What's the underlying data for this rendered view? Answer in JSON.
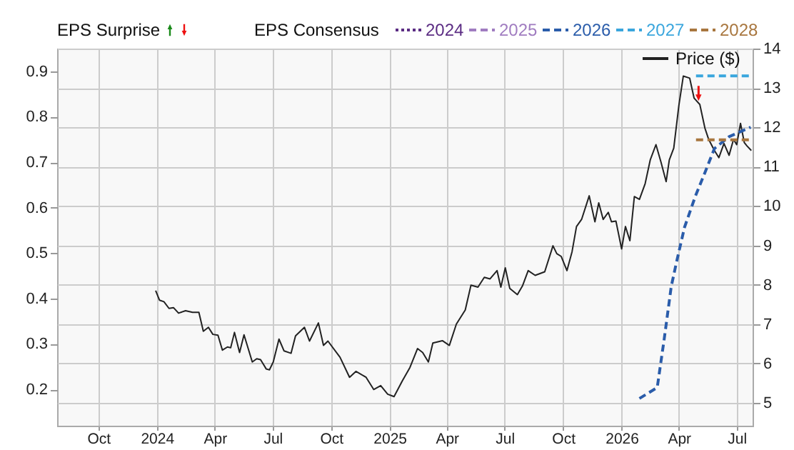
{
  "chart_data": {
    "type": "line",
    "legend_title": "EPS Consensus",
    "annotations": [
      "EPS Surprise"
    ],
    "xlim": [
      "2023-07-28",
      "2026-07-26"
    ],
    "xticks": [
      {
        "value": "2023-10-01",
        "label": "Oct"
      },
      {
        "value": "2024-01-01",
        "label": "2024"
      },
      {
        "value": "2024-04-01",
        "label": "Apr"
      },
      {
        "value": "2024-07-01",
        "label": "Jul"
      },
      {
        "value": "2024-10-01",
        "label": "Oct"
      },
      {
        "value": "2025-01-01",
        "label": "2025"
      },
      {
        "value": "2025-04-01",
        "label": "Apr"
      },
      {
        "value": "2025-07-01",
        "label": "Jul"
      },
      {
        "value": "2025-10-01",
        "label": "Oct"
      },
      {
        "value": "2026-01-01",
        "label": "2026"
      },
      {
        "value": "2026-04-01",
        "label": "Apr"
      },
      {
        "value": "2026-07-01",
        "label": "Jul"
      }
    ],
    "ylim": [
      0.12,
      0.95
    ],
    "yticks": [
      0.2,
      0.3,
      0.4,
      0.5,
      0.6,
      0.7,
      0.8,
      0.9
    ],
    "y2lim": [
      4.42,
      14.0
    ],
    "y2ticks": [
      5,
      6,
      7,
      8,
      9,
      10,
      11,
      12,
      13,
      14
    ],
    "grid": true,
    "legend": "top",
    "series": [
      {
        "name": "Price ($)",
        "axis": "y2",
        "color": "#222222",
        "x": [
          "2023-12-30",
          "2024-01-05",
          "2024-01-12",
          "2024-01-20",
          "2024-01-27",
          "2024-02-04",
          "2024-02-15",
          "2024-02-26",
          "2024-03-07",
          "2024-03-14",
          "2024-03-22",
          "2024-03-29",
          "2024-04-06",
          "2024-04-13",
          "2024-04-21",
          "2024-04-26",
          "2024-05-02",
          "2024-05-10",
          "2024-05-17",
          "2024-05-30",
          "2024-06-06",
          "2024-06-12",
          "2024-06-21",
          "2024-06-26",
          "2024-07-02",
          "2024-07-11",
          "2024-07-19",
          "2024-07-30",
          "2024-08-06",
          "2024-08-20",
          "2024-08-28",
          "2024-09-11",
          "2024-09-19",
          "2024-09-26",
          "2024-10-15",
          "2024-10-30",
          "2024-11-09",
          "2024-11-25",
          "2024-12-07",
          "2024-12-18",
          "2024-12-29",
          "2025-01-08",
          "2025-01-21",
          "2025-02-02",
          "2025-02-14",
          "2025-02-22",
          "2025-03-03",
          "2025-03-10",
          "2025-03-25",
          "2025-04-05",
          "2025-04-16",
          "2025-04-30",
          "2025-05-09",
          "2025-05-20",
          "2025-05-30",
          "2025-06-08",
          "2025-06-19",
          "2025-06-25",
          "2025-07-02",
          "2025-07-09",
          "2025-07-21",
          "2025-07-29",
          "2025-08-07",
          "2025-08-18",
          "2025-09-02",
          "2025-09-15",
          "2025-09-21",
          "2025-09-28",
          "2025-10-07",
          "2025-10-15",
          "2025-10-22",
          "2025-10-30",
          "2025-11-11",
          "2025-11-20",
          "2025-11-26",
          "2025-12-03",
          "2025-12-11",
          "2025-12-16",
          "2025-12-23",
          "2026-01-01",
          "2026-01-07",
          "2026-01-14",
          "2026-01-21",
          "2026-01-29",
          "2026-02-07",
          "2026-02-15",
          "2026-02-24",
          "2026-03-04",
          "2026-03-12",
          "2026-03-17",
          "2026-03-24",
          "2026-04-01",
          "2026-04-08",
          "2026-04-18",
          "2026-04-25",
          "2026-05-04",
          "2026-05-12",
          "2026-05-18",
          "2026-05-27",
          "2026-06-03",
          "2026-06-11",
          "2026-06-19",
          "2026-06-26",
          "2026-07-01",
          "2026-07-07",
          "2026-07-13",
          "2026-07-17",
          "2026-07-24"
        ],
        "values": [
          7.85,
          7.61,
          7.57,
          7.4,
          7.42,
          7.28,
          7.34,
          7.3,
          7.3,
          6.82,
          6.92,
          6.74,
          6.72,
          6.34,
          6.42,
          6.4,
          6.79,
          6.28,
          6.73,
          6.04,
          6.12,
          6.1,
          5.86,
          5.84,
          6.04,
          6.62,
          6.32,
          6.26,
          6.7,
          6.92,
          6.57,
          7.03,
          6.46,
          6.57,
          6.16,
          5.65,
          5.8,
          5.65,
          5.34,
          5.44,
          5.22,
          5.16,
          5.56,
          5.9,
          6.38,
          6.28,
          6.04,
          6.52,
          6.58,
          6.46,
          7.0,
          7.36,
          7.99,
          7.94,
          8.19,
          8.15,
          8.36,
          7.94,
          8.43,
          7.91,
          7.75,
          7.97,
          8.36,
          8.24,
          8.33,
          8.99,
          8.79,
          8.72,
          8.36,
          8.84,
          9.48,
          9.66,
          10.26,
          9.6,
          10.08,
          9.66,
          9.84,
          9.6,
          9.62,
          8.91,
          9.48,
          9.12,
          10.24,
          10.17,
          10.57,
          11.17,
          11.56,
          11.11,
          10.62,
          11.17,
          11.47,
          12.55,
          13.3,
          13.25,
          12.74,
          12.58,
          11.98,
          11.69,
          11.41,
          11.23,
          11.59,
          11.29,
          11.69,
          11.56,
          12.1,
          11.61,
          11.53,
          11.41
        ]
      },
      {
        "name": "2024",
        "axis": "y",
        "color": "#5b2c83",
        "line_style": "dotted"
      },
      {
        "name": "2025",
        "axis": "y",
        "color": "#a07cc0",
        "line_style": "dashed"
      },
      {
        "name": "2026",
        "axis": "y",
        "color": "#2a5caa",
        "line_style": "dashed",
        "x": [
          "2026-01-29",
          "2026-02-26",
          "2026-03-09",
          "2026-03-20",
          "2026-03-28",
          "2026-04-10",
          "2026-04-27",
          "2026-05-12",
          "2026-05-27",
          "2026-06-19",
          "2026-07-23"
        ],
        "values": [
          0.18,
          0.204,
          0.311,
          0.426,
          0.478,
          0.557,
          0.625,
          0.677,
          0.73,
          0.756,
          0.777
        ]
      },
      {
        "name": "2027",
        "axis": "y",
        "color": "#3aa6dd",
        "line_style": "dashed",
        "x": [
          "2026-04-28",
          "2026-07-26"
        ],
        "values": [
          0.89,
          0.89
        ]
      },
      {
        "name": "2028",
        "axis": "y",
        "color": "#a8763e",
        "line_style": "dashed",
        "x": [
          "2026-04-28",
          "2026-07-26"
        ],
        "values": [
          0.749,
          0.749
        ]
      },
      {
        "type": "scatter",
        "axis": "y2",
        "color": "#1a8a1a",
        "marker": "triangle"
      },
      {
        "type": "scatter",
        "axis": "y2",
        "color": "#ee1111",
        "marker": "triangle",
        "x": [
          "2026-05-02"
        ],
        "values": [
          12.86
        ]
      }
    ]
  }
}
